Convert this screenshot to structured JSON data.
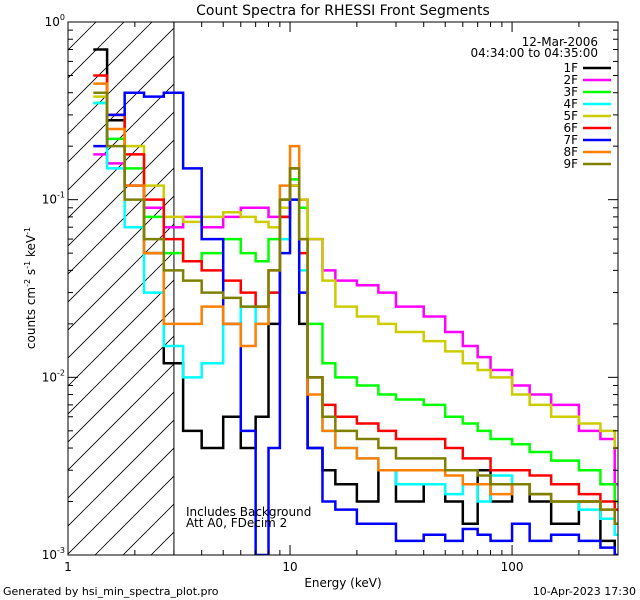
{
  "chart_data": {
    "type": "line",
    "title": "Count Spectra for RHESSI Front Segments",
    "xlabel": "Energy (keV)",
    "ylabel_main": "counts cm",
    "ylabel_sup1": "-2",
    "ylabel_mid": " s",
    "ylabel_sup2": "-1",
    "ylabel_end": " keV",
    "ylabel_sup3": "-1",
    "x_scale": "log",
    "y_scale": "log",
    "xlim": [
      1.0,
      300.0
    ],
    "ylim": [
      0.001,
      1.0
    ],
    "date_label": "12-Mar-2006",
    "time_label": "04:34:00 to 04:35:00",
    "annotation_line1": "Includes Background",
    "annotation_line2": "Att A0, FDecim 2",
    "shaded_region_xmax": 3.0,
    "x_ticks": [
      {
        "value": 1,
        "label": "1"
      },
      {
        "value": 10,
        "label": "10"
      },
      {
        "value": 100,
        "label": "100"
      }
    ],
    "y_ticks": [
      {
        "value": 0.001,
        "base": "10",
        "exp": "-3"
      },
      {
        "value": 0.01,
        "base": "10",
        "exp": "-2"
      },
      {
        "value": 0.1,
        "base": "10",
        "exp": "-1"
      },
      {
        "value": 1,
        "base": "10",
        "exp": "0"
      }
    ],
    "series": [
      {
        "name": "1F",
        "color": "#000000",
        "x": [
          1.3,
          1.5,
          1.8,
          2.2,
          2.7,
          3.3,
          4.0,
          5.0,
          6.0,
          7.0,
          8.0,
          9.0,
          10.0,
          11.0,
          12.0,
          14.0,
          16.0,
          20.0,
          25.0,
          30.0,
          40.0,
          50.0,
          60.0,
          70.0,
          80.0,
          100.0,
          120.0,
          150.0,
          200.0,
          250.0,
          290.0
        ],
        "y": [
          0.7,
          0.28,
          0.12,
          0.05,
          0.012,
          0.005,
          0.004,
          0.006,
          0.004,
          0.006,
          0.02,
          0.08,
          0.12,
          0.02,
          0.004,
          0.003,
          0.0025,
          0.002,
          0.003,
          0.002,
          0.0025,
          0.002,
          0.0015,
          0.003,
          0.002,
          0.0025,
          0.002,
          0.0015,
          0.002,
          0.0012,
          0.001
        ]
      },
      {
        "name": "2F",
        "color": "#ff00ff",
        "x": [
          1.3,
          1.5,
          1.8,
          2.2,
          2.7,
          3.3,
          4.0,
          5.0,
          6.0,
          7.0,
          8.0,
          9.0,
          10.0,
          11.0,
          12.0,
          14.0,
          16.0,
          20.0,
          25.0,
          30.0,
          40.0,
          50.0,
          60.0,
          70.0,
          80.0,
          100.0,
          120.0,
          150.0,
          200.0,
          250.0,
          290.0
        ],
        "y": [
          0.18,
          0.16,
          0.12,
          0.09,
          0.07,
          0.08,
          0.07,
          0.08,
          0.09,
          0.09,
          0.08,
          0.1,
          0.12,
          0.1,
          0.06,
          0.04,
          0.035,
          0.033,
          0.03,
          0.025,
          0.022,
          0.018,
          0.015,
          0.013,
          0.011,
          0.009,
          0.008,
          0.007,
          0.005,
          0.0045,
          0.0025
        ]
      },
      {
        "name": "3F",
        "color": "#00ff00",
        "x": [
          1.3,
          1.5,
          1.8,
          2.2,
          2.7,
          3.3,
          4.0,
          5.0,
          6.0,
          7.0,
          8.0,
          9.0,
          10.0,
          11.0,
          12.0,
          14.0,
          16.0,
          20.0,
          25.0,
          30.0,
          40.0,
          50.0,
          60.0,
          70.0,
          80.0,
          100.0,
          120.0,
          150.0,
          200.0,
          250.0,
          290.0
        ],
        "y": [
          0.35,
          0.22,
          0.15,
          0.08,
          0.05,
          0.045,
          0.05,
          0.06,
          0.05,
          0.045,
          0.06,
          0.1,
          0.13,
          0.09,
          0.02,
          0.012,
          0.01,
          0.009,
          0.008,
          0.0075,
          0.007,
          0.006,
          0.0055,
          0.005,
          0.0045,
          0.0042,
          0.0038,
          0.0034,
          0.003,
          0.0025,
          0.002
        ]
      },
      {
        "name": "4F",
        "color": "#00ffff",
        "x": [
          1.3,
          1.5,
          1.8,
          2.2,
          2.7,
          3.3,
          4.0,
          5.0,
          6.0,
          7.0,
          8.0,
          9.0,
          10.0,
          11.0,
          12.0,
          14.0,
          16.0,
          20.0,
          25.0,
          30.0,
          40.0,
          50.0,
          60.0,
          70.0,
          80.0,
          100.0,
          120.0,
          150.0,
          200.0,
          250.0,
          290.0
        ],
        "y": [
          0.35,
          0.15,
          0.07,
          0.03,
          0.015,
          0.01,
          0.012,
          0.02,
          0.025,
          0.02,
          0.03,
          0.06,
          0.1,
          0.04,
          0.01,
          0.005,
          0.004,
          0.0035,
          0.003,
          0.0025,
          0.0025,
          0.0022,
          0.0025,
          0.002,
          0.0028,
          0.0025,
          0.0022,
          0.002,
          0.0018,
          0.0016,
          0.0013
        ]
      },
      {
        "name": "5F",
        "color": "#cccc00",
        "x": [
          1.3,
          1.5,
          1.8,
          2.2,
          2.7,
          3.3,
          4.0,
          5.0,
          6.0,
          7.0,
          8.0,
          9.0,
          10.0,
          11.0,
          12.0,
          14.0,
          16.0,
          20.0,
          25.0,
          30.0,
          40.0,
          50.0,
          60.0,
          70.0,
          80.0,
          100.0,
          120.0,
          150.0,
          200.0,
          250.0,
          290.0
        ],
        "y": [
          0.38,
          0.3,
          0.2,
          0.12,
          0.08,
          0.075,
          0.08,
          0.085,
          0.08,
          0.075,
          0.07,
          0.09,
          0.12,
          0.1,
          0.06,
          0.035,
          0.025,
          0.022,
          0.02,
          0.018,
          0.016,
          0.014,
          0.012,
          0.011,
          0.01,
          0.008,
          0.007,
          0.006,
          0.0055,
          0.005,
          0.004
        ]
      },
      {
        "name": "6F",
        "color": "#ff0000",
        "x": [
          1.3,
          1.5,
          1.8,
          2.2,
          2.7,
          3.3,
          4.0,
          5.0,
          6.0,
          7.0,
          8.0,
          9.0,
          10.0,
          11.0,
          12.0,
          14.0,
          16.0,
          20.0,
          25.0,
          30.0,
          40.0,
          50.0,
          60.0,
          70.0,
          80.0,
          100.0,
          120.0,
          150.0,
          200.0,
          250.0,
          290.0
        ],
        "y": [
          0.5,
          0.3,
          0.18,
          0.1,
          0.06,
          0.045,
          0.04,
          0.035,
          0.03,
          0.025,
          0.03,
          0.08,
          0.15,
          0.05,
          0.01,
          0.007,
          0.006,
          0.0055,
          0.005,
          0.0045,
          0.0045,
          0.004,
          0.0035,
          0.0035,
          0.003,
          0.003,
          0.0028,
          0.0025,
          0.0022,
          0.002,
          0.0018
        ]
      },
      {
        "name": "7F",
        "color": "#0000ff",
        "x": [
          1.3,
          1.5,
          1.8,
          2.2,
          2.7,
          3.3,
          4.0,
          5.0,
          6.0,
          7.0,
          8.0,
          9.0,
          10.0,
          11.0,
          12.0,
          14.0,
          16.0,
          20.0,
          25.0,
          30.0,
          40.0,
          50.0,
          60.0,
          70.0,
          80.0,
          100.0,
          120.0,
          150.0,
          200.0,
          250.0,
          290.0
        ],
        "y": [
          0.2,
          0.3,
          0.4,
          0.38,
          0.4,
          0.15,
          0.06,
          0.02,
          0.005,
          0.001,
          0.004,
          0.05,
          0.1,
          0.03,
          0.004,
          0.002,
          0.0018,
          0.0015,
          0.0015,
          0.0012,
          0.0013,
          0.0012,
          0.0014,
          0.0013,
          0.0012,
          0.0015,
          0.0012,
          0.0013,
          0.0012,
          0.0011,
          0.001
        ]
      },
      {
        "name": "8F",
        "color": "#ff7f00",
        "x": [
          1.3,
          1.5,
          1.8,
          2.2,
          2.7,
          3.3,
          4.0,
          5.0,
          6.0,
          7.0,
          8.0,
          9.0,
          10.0,
          11.0,
          12.0,
          14.0,
          16.0,
          20.0,
          25.0,
          30.0,
          40.0,
          50.0,
          60.0,
          70.0,
          80.0,
          100.0,
          120.0,
          150.0,
          200.0,
          250.0,
          290.0
        ],
        "y": [
          0.45,
          0.25,
          0.12,
          0.05,
          0.02,
          0.02,
          0.025,
          0.02,
          0.015,
          0.02,
          0.04,
          0.12,
          0.2,
          0.06,
          0.008,
          0.005,
          0.004,
          0.0035,
          0.003,
          0.003,
          0.003,
          0.0028,
          0.0025,
          0.0025,
          0.0022,
          0.0025,
          0.0022,
          0.002,
          0.002,
          0.0018,
          0.0015
        ]
      },
      {
        "name": "9F",
        "color": "#808000",
        "x": [
          1.3,
          1.5,
          1.8,
          2.2,
          2.7,
          3.3,
          4.0,
          5.0,
          6.0,
          7.0,
          8.0,
          9.0,
          10.0,
          11.0,
          12.0,
          14.0,
          16.0,
          20.0,
          25.0,
          30.0,
          40.0,
          50.0,
          60.0,
          70.0,
          80.0,
          100.0,
          120.0,
          150.0,
          200.0,
          250.0,
          290.0
        ],
        "y": [
          0.4,
          0.2,
          0.1,
          0.06,
          0.04,
          0.035,
          0.03,
          0.028,
          0.025,
          0.025,
          0.04,
          0.1,
          0.15,
          0.06,
          0.01,
          0.006,
          0.005,
          0.0045,
          0.004,
          0.0035,
          0.0035,
          0.003,
          0.003,
          0.0028,
          0.0025,
          0.0025,
          0.0022,
          0.002,
          0.002,
          0.0018,
          0.0015
        ]
      }
    ]
  },
  "footer": {
    "generated_by": "Generated by hsi_min_spectra_plot.pro",
    "timestamp": "10-Apr-2023 17:30"
  }
}
